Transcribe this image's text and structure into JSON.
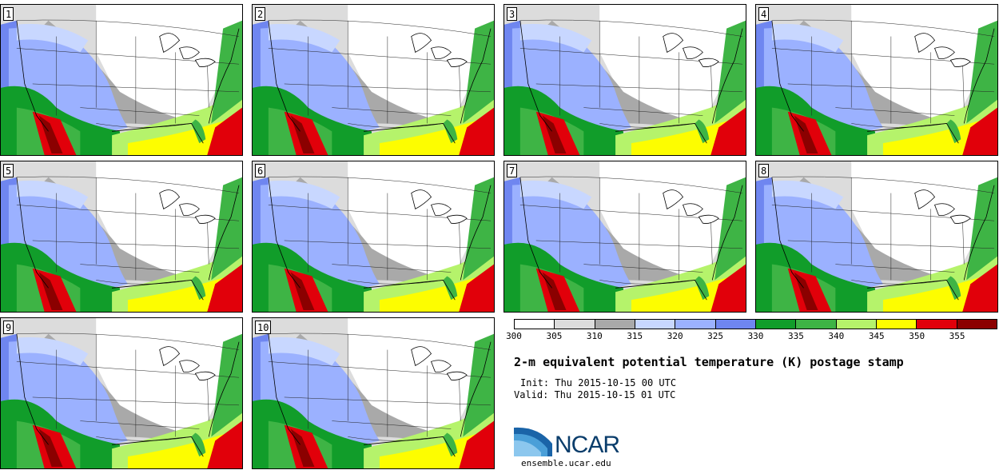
{
  "panels": [
    {
      "label": "1"
    },
    {
      "label": "2"
    },
    {
      "label": "3"
    },
    {
      "label": "4"
    },
    {
      "label": "5"
    },
    {
      "label": "6"
    },
    {
      "label": "7"
    },
    {
      "label": "8"
    },
    {
      "label": "9"
    },
    {
      "label": "10"
    }
  ],
  "colorbar": {
    "labels": [
      "300",
      "305",
      "310",
      "315",
      "320",
      "325",
      "330",
      "335",
      "340",
      "345",
      "350",
      "355"
    ],
    "colors": [
      "#ffffff",
      "#dcdcdc",
      "#a9a9a9",
      "#c8d7ff",
      "#9bb1ff",
      "#6f86f0",
      "#119d2a",
      "#3eb445",
      "#b5f36b",
      "#fdfd00",
      "#e1000a",
      "#8b0000"
    ]
  },
  "title": "2-m equivalent potential temperature (K) postage stamp",
  "init": "Init: Thu 2015-10-15 00 UTC",
  "valid": "Valid: Thu 2015-10-15 01 UTC",
  "logo": {
    "text": "NCAR",
    "url": "ensemble.ucar.edu"
  }
}
